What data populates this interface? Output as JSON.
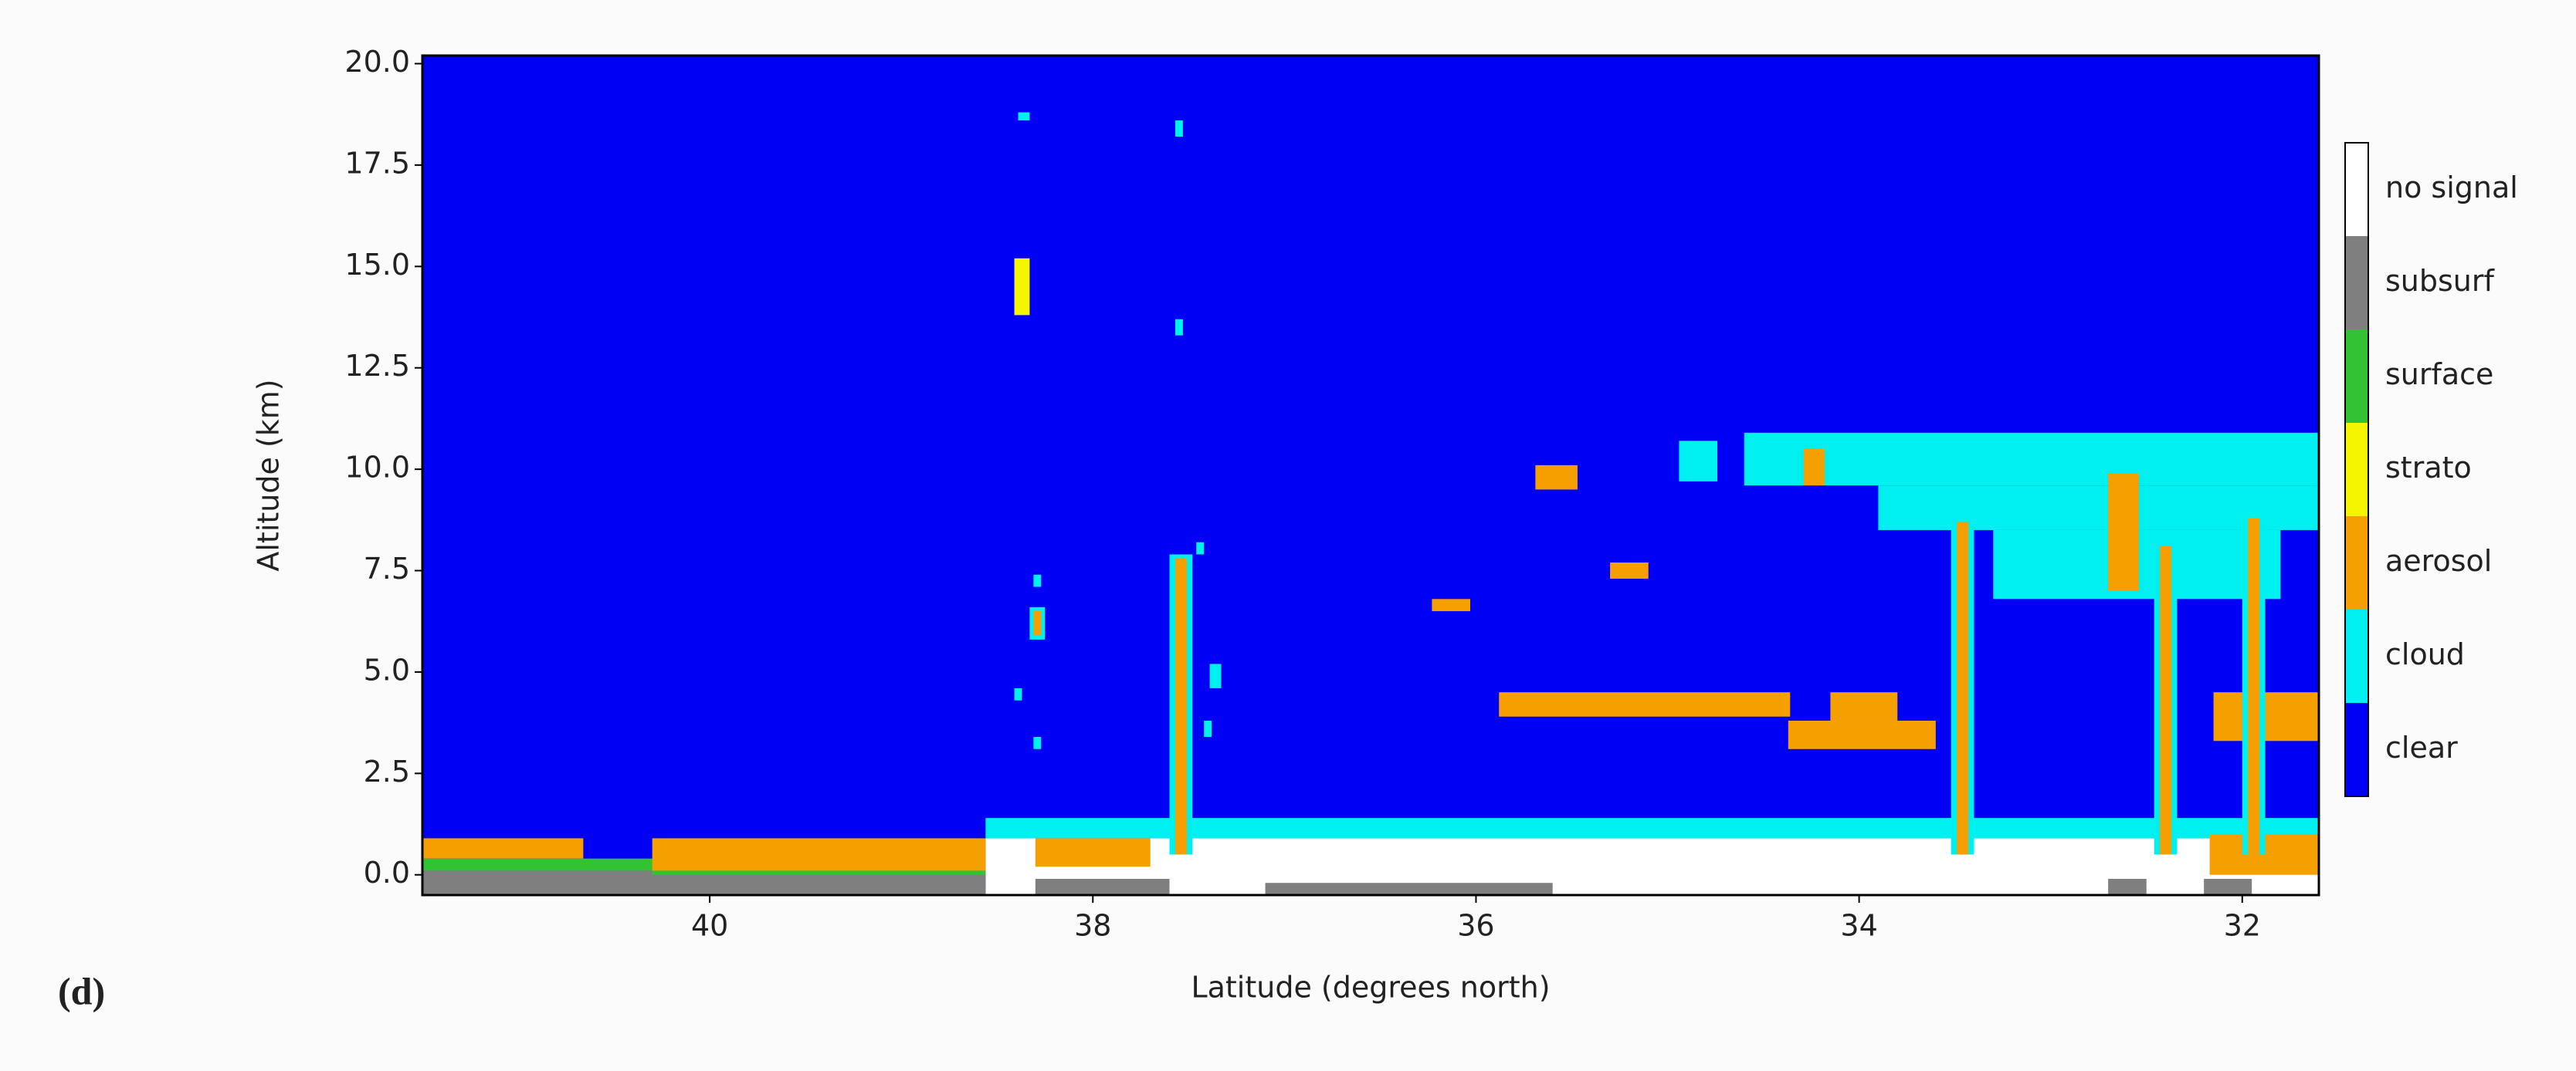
{
  "chart_data": {
    "type": "classification",
    "label": "(d)",
    "xlabel": "Latitude (degrees north)",
    "ylabel": "Altitude (km)",
    "xlim": [
      41.5,
      31.6
    ],
    "xticks": [
      40,
      38,
      36,
      34,
      32
    ],
    "ylim": [
      -0.5,
      20.2
    ],
    "yticks": [
      {
        "value": 0,
        "label": "0.0"
      },
      2.5,
      {
        "value": 5,
        "label": "5.0"
      },
      7.5,
      {
        "value": 10,
        "label": "10.0"
      },
      12.5,
      {
        "value": 15,
        "label": "15.0"
      },
      17.5,
      {
        "value": 20,
        "label": "20.0"
      }
    ],
    "classes": [
      {
        "name": "clear",
        "color": "#0000f5"
      },
      {
        "name": "cloud",
        "color": "#00f0f0"
      },
      {
        "name": "aerosol",
        "color": "#f5a000"
      },
      {
        "name": "strato",
        "color": "#f5f500"
      },
      {
        "name": "surface",
        "color": "#33c233"
      },
      {
        "name": "subsurf",
        "color": "#7f7f7f"
      },
      {
        "name": "no signal",
        "color": "#ffffff"
      }
    ],
    "background": "clear",
    "regions": [
      {
        "class": "no signal",
        "lat": [
          38.56,
          31.6
        ],
        "alt": [
          -0.5,
          0.9
        ]
      },
      {
        "class": "subsurf",
        "lat": [
          41.5,
          38.56
        ],
        "alt": [
          -0.5,
          0.1
        ]
      },
      {
        "class": "surface",
        "lat": [
          41.5,
          40.27
        ],
        "alt": [
          0.1,
          0.4
        ]
      },
      {
        "class": "aerosol",
        "lat": [
          41.5,
          40.66
        ],
        "alt": [
          0.4,
          0.9
        ]
      },
      {
        "class": "aerosol",
        "lat": [
          40.3,
          38.56
        ],
        "alt": [
          0.1,
          0.9
        ]
      },
      {
        "class": "surface",
        "lat": [
          40.3,
          38.56
        ],
        "alt": [
          0.0,
          0.1
        ]
      },
      {
        "class": "cloud",
        "lat": [
          38.56,
          31.6
        ],
        "alt": [
          0.9,
          1.4
        ]
      },
      {
        "class": "aerosol",
        "lat": [
          38.3,
          37.7
        ],
        "alt": [
          0.2,
          0.9
        ]
      },
      {
        "class": "subsurf",
        "lat": [
          38.3,
          37.6
        ],
        "alt": [
          -0.5,
          -0.1
        ]
      },
      {
        "class": "subsurf",
        "lat": [
          37.1,
          35.6
        ],
        "alt": [
          -0.5,
          -0.2
        ]
      },
      {
        "class": "subsurf",
        "lat": [
          32.7,
          32.5
        ],
        "alt": [
          -0.5,
          -0.1
        ]
      },
      {
        "class": "subsurf",
        "lat": [
          32.2,
          31.95
        ],
        "alt": [
          -0.5,
          -0.1
        ]
      },
      {
        "class": "aerosol",
        "lat": [
          32.17,
          31.6
        ],
        "alt": [
          0.0,
          1.0
        ]
      },
      {
        "class": "cloud",
        "lat": [
          34.6,
          31.6
        ],
        "alt": [
          9.6,
          10.9
        ]
      },
      {
        "class": "cloud",
        "lat": [
          33.9,
          31.6
        ],
        "alt": [
          8.5,
          9.6
        ]
      },
      {
        "class": "cloud",
        "lat": [
          33.3,
          31.8
        ],
        "alt": [
          6.8,
          8.5
        ]
      },
      {
        "class": "cloud",
        "lat": [
          34.94,
          34.74
        ],
        "alt": [
          9.7,
          10.7
        ]
      },
      {
        "class": "aerosol",
        "lat": [
          34.29,
          34.18
        ],
        "alt": [
          9.6,
          10.5
        ]
      },
      {
        "class": "aerosol",
        "lat": [
          32.7,
          32.54
        ],
        "alt": [
          7.0,
          9.9
        ]
      },
      {
        "class": "aerosol",
        "lat": [
          35.88,
          34.36
        ],
        "alt": [
          3.9,
          4.5
        ]
      },
      {
        "class": "aerosol",
        "lat": [
          34.37,
          33.6
        ],
        "alt": [
          3.1,
          3.8
        ]
      },
      {
        "class": "aerosol",
        "lat": [
          34.15,
          33.8
        ],
        "alt": [
          3.8,
          4.5
        ]
      },
      {
        "class": "aerosol",
        "lat": [
          32.15,
          31.6
        ],
        "alt": [
          3.3,
          4.5
        ]
      },
      {
        "class": "aerosol",
        "lat": [
          35.69,
          35.47
        ],
        "alt": [
          9.5,
          10.1
        ]
      },
      {
        "class": "aerosol",
        "lat": [
          35.3,
          35.1
        ],
        "alt": [
          7.3,
          7.7
        ]
      },
      {
        "class": "aerosol",
        "lat": [
          36.23,
          36.03
        ],
        "alt": [
          6.5,
          6.8
        ]
      },
      {
        "class": "cloud",
        "lat": [
          37.6,
          37.48
        ],
        "alt": [
          0.5,
          7.9
        ]
      },
      {
        "class": "aerosol",
        "lat": [
          37.57,
          37.51
        ],
        "alt": [
          0.5,
          7.8
        ]
      },
      {
        "class": "cloud",
        "lat": [
          33.52,
          33.4
        ],
        "alt": [
          0.5,
          8.8
        ]
      },
      {
        "class": "aerosol",
        "lat": [
          33.49,
          33.43
        ],
        "alt": [
          0.5,
          8.7
        ]
      },
      {
        "class": "cloud",
        "lat": [
          32.46,
          32.34
        ],
        "alt": [
          0.5,
          8.2
        ]
      },
      {
        "class": "aerosol",
        "lat": [
          32.43,
          32.37
        ],
        "alt": [
          0.5,
          8.1
        ]
      },
      {
        "class": "cloud",
        "lat": [
          32.0,
          31.88
        ],
        "alt": [
          0.5,
          8.9
        ]
      },
      {
        "class": "aerosol",
        "lat": [
          31.97,
          31.91
        ],
        "alt": [
          0.5,
          8.8
        ]
      },
      {
        "class": "strato",
        "lat": [
          38.41,
          38.33
        ],
        "alt": [
          13.8,
          15.2
        ]
      },
      {
        "class": "cloud",
        "lat": [
          38.39,
          38.33
        ],
        "alt": [
          18.6,
          18.8
        ]
      },
      {
        "class": "cloud",
        "lat": [
          37.57,
          37.53
        ],
        "alt": [
          18.2,
          18.6
        ]
      },
      {
        "class": "cloud",
        "lat": [
          37.57,
          37.53
        ],
        "alt": [
          13.3,
          13.7
        ]
      },
      {
        "class": "cloud",
        "lat": [
          37.46,
          37.42
        ],
        "alt": [
          7.9,
          8.2
        ]
      },
      {
        "class": "cloud",
        "lat": [
          38.31,
          38.27
        ],
        "alt": [
          7.1,
          7.4
        ]
      },
      {
        "class": "cloud",
        "lat": [
          38.33,
          38.25
        ],
        "alt": [
          5.8,
          6.6
        ]
      },
      {
        "class": "aerosol",
        "lat": [
          38.31,
          38.27
        ],
        "alt": [
          5.9,
          6.5
        ]
      },
      {
        "class": "cloud",
        "lat": [
          38.41,
          38.37
        ],
        "alt": [
          4.3,
          4.6
        ]
      },
      {
        "class": "cloud",
        "lat": [
          38.31,
          38.27
        ],
        "alt": [
          3.1,
          3.4
        ]
      },
      {
        "class": "cloud",
        "lat": [
          37.39,
          37.33
        ],
        "alt": [
          4.6,
          5.2
        ]
      },
      {
        "class": "cloud",
        "lat": [
          37.42,
          37.38
        ],
        "alt": [
          3.4,
          3.8
        ]
      }
    ]
  }
}
